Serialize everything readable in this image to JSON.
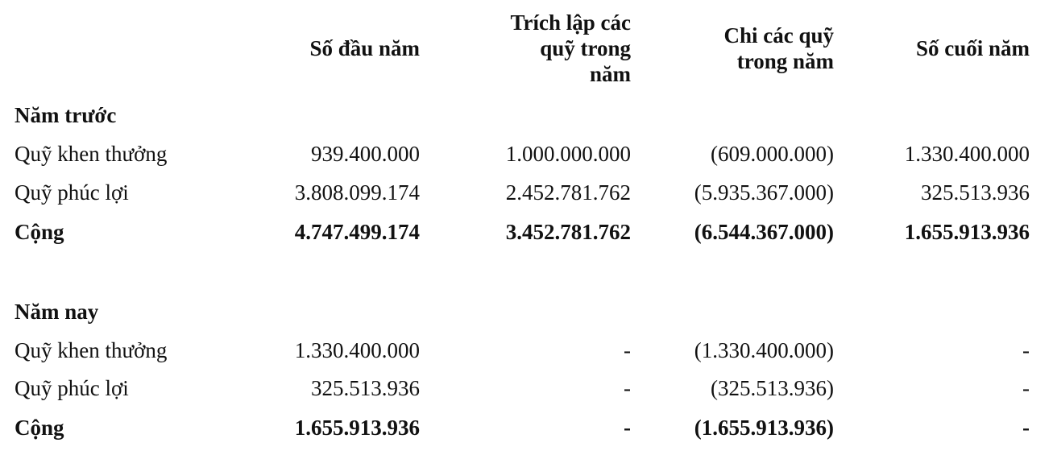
{
  "headers": {
    "col1": [
      "Số đầu năm"
    ],
    "col2": [
      "Trích lập các",
      "quỹ trong",
      "năm"
    ],
    "col3": [
      "Chi các quỹ",
      "trong năm"
    ],
    "col4": [
      "Số cuối năm"
    ]
  },
  "sections": [
    {
      "title": "Năm trước",
      "rows": [
        {
          "label": "Quỹ khen thưởng",
          "v1": "939.400.000",
          "v2": "1.000.000.000",
          "v3": "(609.000.000)",
          "v4": "1.330.400.000",
          "bold": false
        },
        {
          "label": "Quỹ phúc lợi",
          "v1": "3.808.099.174",
          "v2": "2.452.781.762",
          "v3": "(5.935.367.000)",
          "v4": "325.513.936",
          "bold": false
        },
        {
          "label": "Cộng",
          "v1": "4.747.499.174",
          "v2": "3.452.781.762",
          "v3": "(6.544.367.000)",
          "v4": "1.655.913.936",
          "bold": true
        }
      ]
    },
    {
      "title": "Năm nay",
      "rows": [
        {
          "label": "Quỹ khen thưởng",
          "v1": "1.330.400.000",
          "v2": "-",
          "v3": "(1.330.400.000)",
          "v4": "-",
          "bold": false
        },
        {
          "label": "Quỹ phúc lợi",
          "v1": "325.513.936",
          "v2": "-",
          "v3": "(325.513.936)",
          "v4": "-",
          "bold": false
        },
        {
          "label": "Cộng",
          "v1": "1.655.913.936",
          "v2": "-",
          "v3": "(1.655.913.936)",
          "v4": "-",
          "bold": true
        }
      ]
    }
  ]
}
